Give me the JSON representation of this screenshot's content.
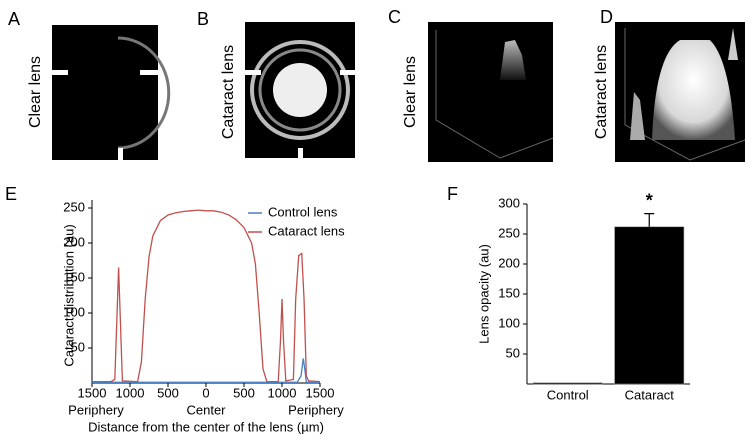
{
  "panels": [
    {
      "letter": "A",
      "label": "Clear lens"
    },
    {
      "letter": "B",
      "label": "Cataract lens"
    },
    {
      "letter": "C",
      "label": "Clear lens"
    },
    {
      "letter": "D",
      "label": "Cataract lens"
    }
  ],
  "chart_data": [
    {
      "type": "line",
      "letter": "E",
      "y_label": "Cataract distribution (au)",
      "x_label": "Distance from the center of the lens (µm)",
      "annotations": [
        "Periphery",
        "Center",
        "Periphery"
      ],
      "xlim": [
        -1500,
        1500
      ],
      "xticks": [
        {
          "value": -1500,
          "label": "1500"
        },
        {
          "value": -1000,
          "label": "1000"
        },
        {
          "value": -500,
          "label": "500"
        },
        0,
        500,
        1000,
        1500
      ],
      "ylim": [
        0,
        250
      ],
      "yticks": [
        50,
        100,
        150,
        200,
        250
      ],
      "legend": "upper right",
      "series": [
        {
          "name": "Control lens",
          "color": "#4a7fc1",
          "x": [
            -1500,
            1200,
            1250,
            1280,
            1300,
            1320,
            1500
          ],
          "values": [
            1,
            1,
            10,
            35,
            20,
            1,
            1
          ]
        },
        {
          "name": "Cataract lens",
          "color": "#c0504d",
          "x": [
            -1500,
            -1250,
            -1200,
            -1170,
            -1150,
            -1130,
            -1100,
            -900,
            -850,
            -800,
            -750,
            -700,
            -600,
            -500,
            -400,
            -300,
            -200,
            -100,
            0,
            100,
            200,
            300,
            400,
            500,
            600,
            650,
            700,
            750,
            800,
            950,
            980,
            1000,
            1020,
            1050,
            1150,
            1180,
            1220,
            1260,
            1290,
            1320,
            1350,
            1500
          ],
          "values": [
            2,
            2,
            5,
            100,
            165,
            100,
            3,
            2,
            30,
            120,
            180,
            210,
            232,
            240,
            243,
            245,
            246,
            247,
            246,
            246,
            244,
            240,
            233,
            222,
            200,
            170,
            100,
            20,
            2,
            2,
            60,
            120,
            60,
            3,
            5,
            120,
            182,
            185,
            120,
            10,
            3,
            2
          ]
        }
      ]
    },
    {
      "type": "bar",
      "letter": "F",
      "y_label": "Lens opacity (au)",
      "categories": [
        "Control",
        "Cataract"
      ],
      "values": [
        2,
        262
      ],
      "errors": [
        null,
        22
      ],
      "annotations": [
        "*"
      ],
      "color": "#000000",
      "ylim": [
        0,
        300
      ],
      "yticks": [
        50,
        100,
        150,
        200,
        250,
        300
      ]
    }
  ]
}
